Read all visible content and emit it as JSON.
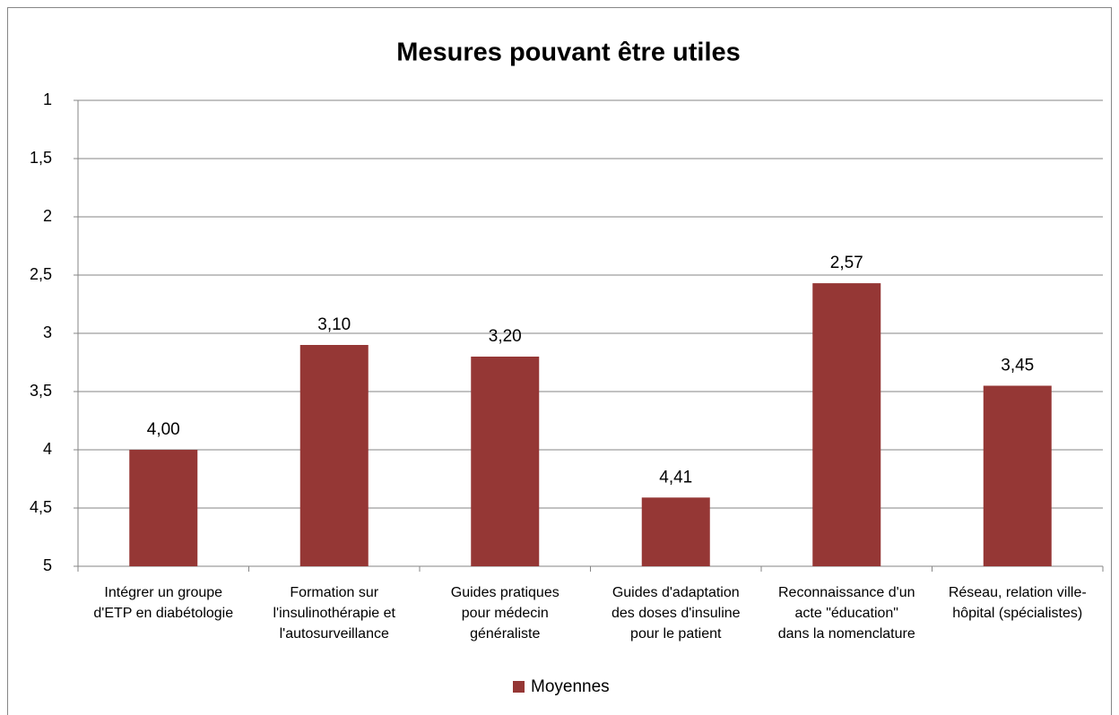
{
  "chart_data": {
    "type": "bar",
    "title": "Mesures pouvant être utiles",
    "categories": [
      "Intégrer un groupe\nd'ETP en diabétologie",
      "Formation sur\nl'insulinothérapie et\nl'autosurveillance",
      "Guides pratiques\npour médecin\ngénéraliste",
      "Guides d'adaptation\ndes doses d'insuline\npour le patient",
      "Reconnaissance d'un\nacte \"éducation\"\ndans la nomenclature",
      "Réseau, relation ville-\nhôpital (spécialistes)"
    ],
    "series": [
      {
        "name": "Moyennes",
        "color": "#953735",
        "values": [
          4.0,
          3.1,
          3.2,
          4.41,
          2.57,
          3.45
        ],
        "value_labels": [
          "4,00",
          "3,10",
          "3,20",
          "4,41",
          "2,57",
          "3,45"
        ]
      }
    ],
    "ylim": [
      5,
      1
    ],
    "yticks": [
      1,
      {
        "value": 1.5,
        "label": "1,5"
      },
      2,
      {
        "value": 2.5,
        "label": "2,5"
      },
      3,
      {
        "value": 3.5,
        "label": "3,5"
      },
      4,
      {
        "value": 4.5,
        "label": "4,5"
      },
      5
    ],
    "grid": true,
    "legend": "bottom"
  }
}
